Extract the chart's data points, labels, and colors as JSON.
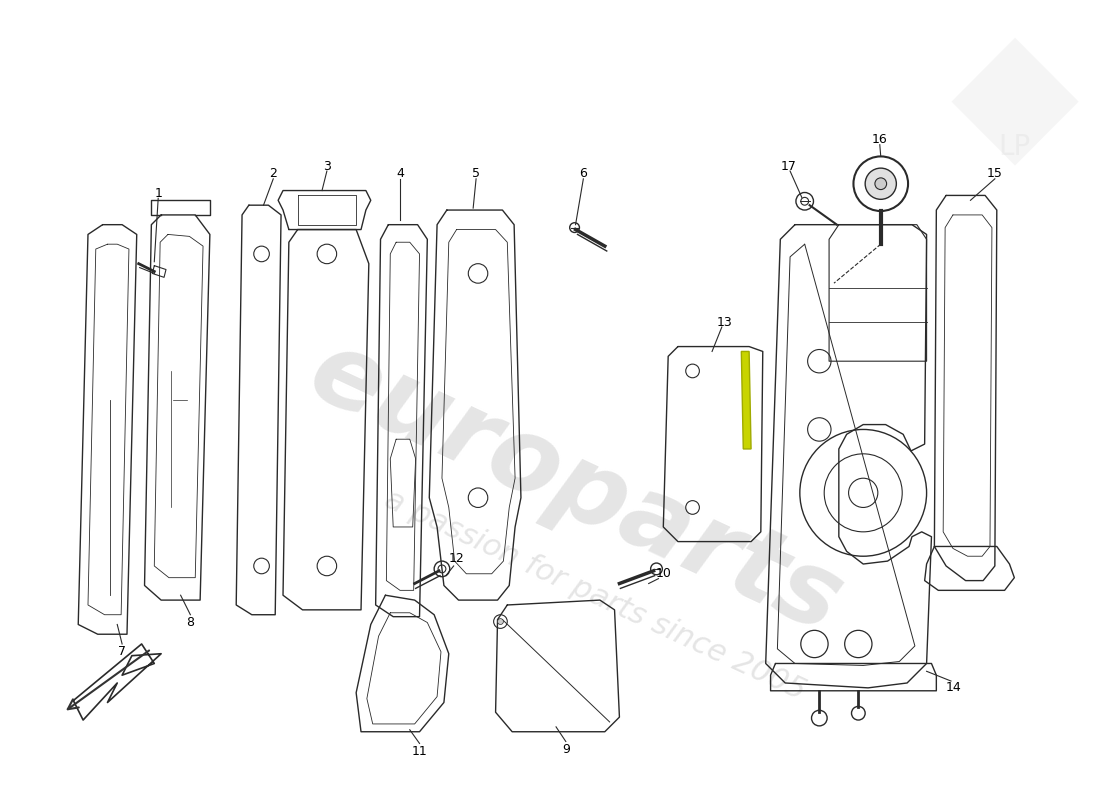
{
  "background_color": "#ffffff",
  "line_color": "#2a2a2a",
  "line_width": 1.0,
  "watermark1": "europarts",
  "watermark2": "a passion for parts since 2005",
  "highlight_color": "#c8d400",
  "label_fontsize": 9,
  "parts": [
    1,
    2,
    3,
    4,
    5,
    6,
    7,
    8,
    9,
    10,
    11,
    12,
    13,
    14,
    15,
    16,
    17
  ]
}
